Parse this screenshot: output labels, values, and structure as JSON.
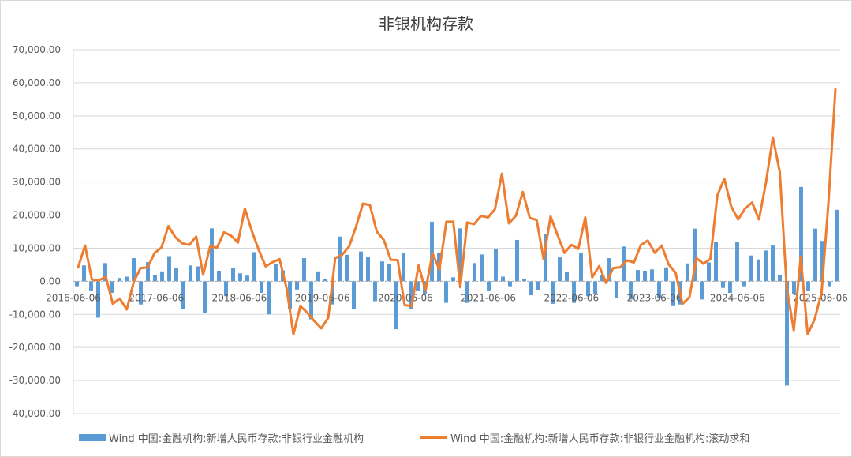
{
  "chart_data": {
    "type": "bar",
    "title": "非银机构存款",
    "xlabel": "",
    "ylabel": "",
    "ylim": [
      -40000,
      70000
    ],
    "yticks": [
      70000,
      60000,
      50000,
      40000,
      30000,
      20000,
      10000,
      0,
      -10000,
      -20000,
      -30000,
      -40000
    ],
    "ytick_labels": [
      "70,000.00",
      "60,000.00",
      "50,000.00",
      "40,000.00",
      "30,000.00",
      "20,000.00",
      "10,000.00",
      "0.00",
      "-10,000.00",
      "-20,000.00",
      "-30,000.00",
      "-40,000.00"
    ],
    "xtick_labels": [
      "2016-06-06",
      "2017-06-06",
      "2018-06-06",
      "2019-06-06",
      "2020-06-06",
      "2021-06-06",
      "2022-06-06",
      "2023-06-06",
      "2024-06-06",
      "2025-06-06"
    ],
    "legend_position": "bottom",
    "grid": "horizontal",
    "series": [
      {
        "name": "Wind 中国:金融机构:新增人民币存款:非银行业金融机构",
        "type": "bar",
        "color": "#5b9bd5",
        "values": [
          -1500,
          4800,
          -3000,
          -11000,
          5500,
          -3500,
          1000,
          1400,
          7000,
          -7000,
          5800,
          1800,
          3000,
          7600,
          3900,
          -8500,
          4800,
          4500,
          -9500,
          16000,
          3200,
          -4500,
          3900,
          2400,
          1700,
          8800,
          -3500,
          -10000,
          5300,
          3300,
          -8500,
          -2500,
          7000,
          -11500,
          3000,
          800,
          -7000,
          13500,
          8000,
          -8500,
          9000,
          7300,
          -6000,
          6000,
          5200,
          -14500,
          8600,
          -8500,
          -3000,
          -4000,
          18000,
          8700,
          -6500,
          1200,
          16000,
          -6500,
          5500,
          8100,
          -3000,
          9800,
          1400,
          -1500,
          12500,
          700,
          -4200,
          -2600,
          14200,
          -6800,
          7200,
          2700,
          -6500,
          8500,
          -4500,
          -4000,
          2000,
          7000,
          -5000,
          10500,
          -5500,
          3400,
          3200,
          3600,
          -5200,
          4200,
          -7500,
          -7000,
          5400,
          15900,
          -5500,
          5700,
          11800,
          -2000,
          -3500,
          11900,
          -1500,
          7800,
          6600,
          9300,
          10800,
          2000,
          -31500,
          -4000,
          28500,
          -3000,
          15900,
          12200,
          -1500,
          21600
        ]
      },
      {
        "name": "Wind 中国:金融机构:新增人民币存款:非银行业金融机构:滚动求和",
        "type": "line",
        "color": "#ed7d31",
        "values": [
          4200,
          10800,
          500,
          300,
          1300,
          -6800,
          -5200,
          -8500,
          -200,
          4000,
          4200,
          8500,
          10200,
          16700,
          13300,
          11500,
          11000,
          13500,
          2000,
          10500,
          10200,
          14800,
          13800,
          11700,
          22000,
          15200,
          9500,
          4500,
          5800,
          6700,
          -2000,
          -16000,
          -7500,
          -9500,
          -12000,
          -14200,
          -11000,
          7000,
          8000,
          10500,
          16500,
          23500,
          23000,
          15000,
          12500,
          6500,
          6400,
          -7200,
          -7500,
          4800,
          -2800,
          8500,
          3500,
          18000,
          18000,
          -1800,
          17800,
          17300,
          19800,
          19300,
          21800,
          32500,
          17500,
          19800,
          27000,
          19200,
          18500,
          6700,
          19600,
          14000,
          8600,
          11000,
          9800,
          19300,
          1200,
          4600,
          -500,
          4000,
          4200,
          6300,
          5700,
          11000,
          12300,
          8600,
          10800,
          5100,
          2600,
          -6800,
          -4800,
          7000,
          5300,
          6800,
          25900,
          31000,
          22600,
          18700,
          22000,
          23800,
          18700,
          29800,
          43500,
          33000,
          -2000,
          -14800,
          7400,
          -16000,
          -11500,
          -3500,
          24000,
          58000
        ]
      }
    ]
  }
}
